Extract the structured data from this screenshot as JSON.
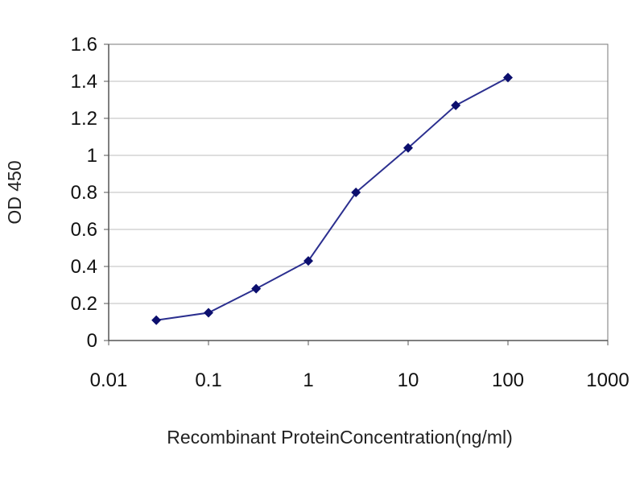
{
  "chart_data": {
    "type": "line",
    "title": "",
    "xlabel": "Recombinant ProteinConcentration(ng/ml)",
    "ylabel": "OD 450",
    "x_scale": "log",
    "xlim": [
      0.01,
      1000
    ],
    "ylim": [
      0,
      1.6
    ],
    "x_ticks": [
      "0.01",
      "0.1",
      "1",
      "10",
      "100",
      "1000"
    ],
    "y_ticks": [
      "0",
      "0.2",
      "0.4",
      "0.6",
      "0.8",
      "1",
      "1.2",
      "1.4",
      "1.6"
    ],
    "grid": "horizontal",
    "legend": "none",
    "colors": {
      "line": "#2b2f8f",
      "marker": "#0c0f6e",
      "grid": "#bdbdbd",
      "axis": "#555555"
    },
    "series": [
      {
        "x": [
          0.03,
          0.1,
          0.3,
          1,
          3,
          10,
          30,
          100
        ],
        "y": [
          0.11,
          0.15,
          0.28,
          0.43,
          0.8,
          1.04,
          1.27,
          1.42
        ]
      }
    ]
  }
}
